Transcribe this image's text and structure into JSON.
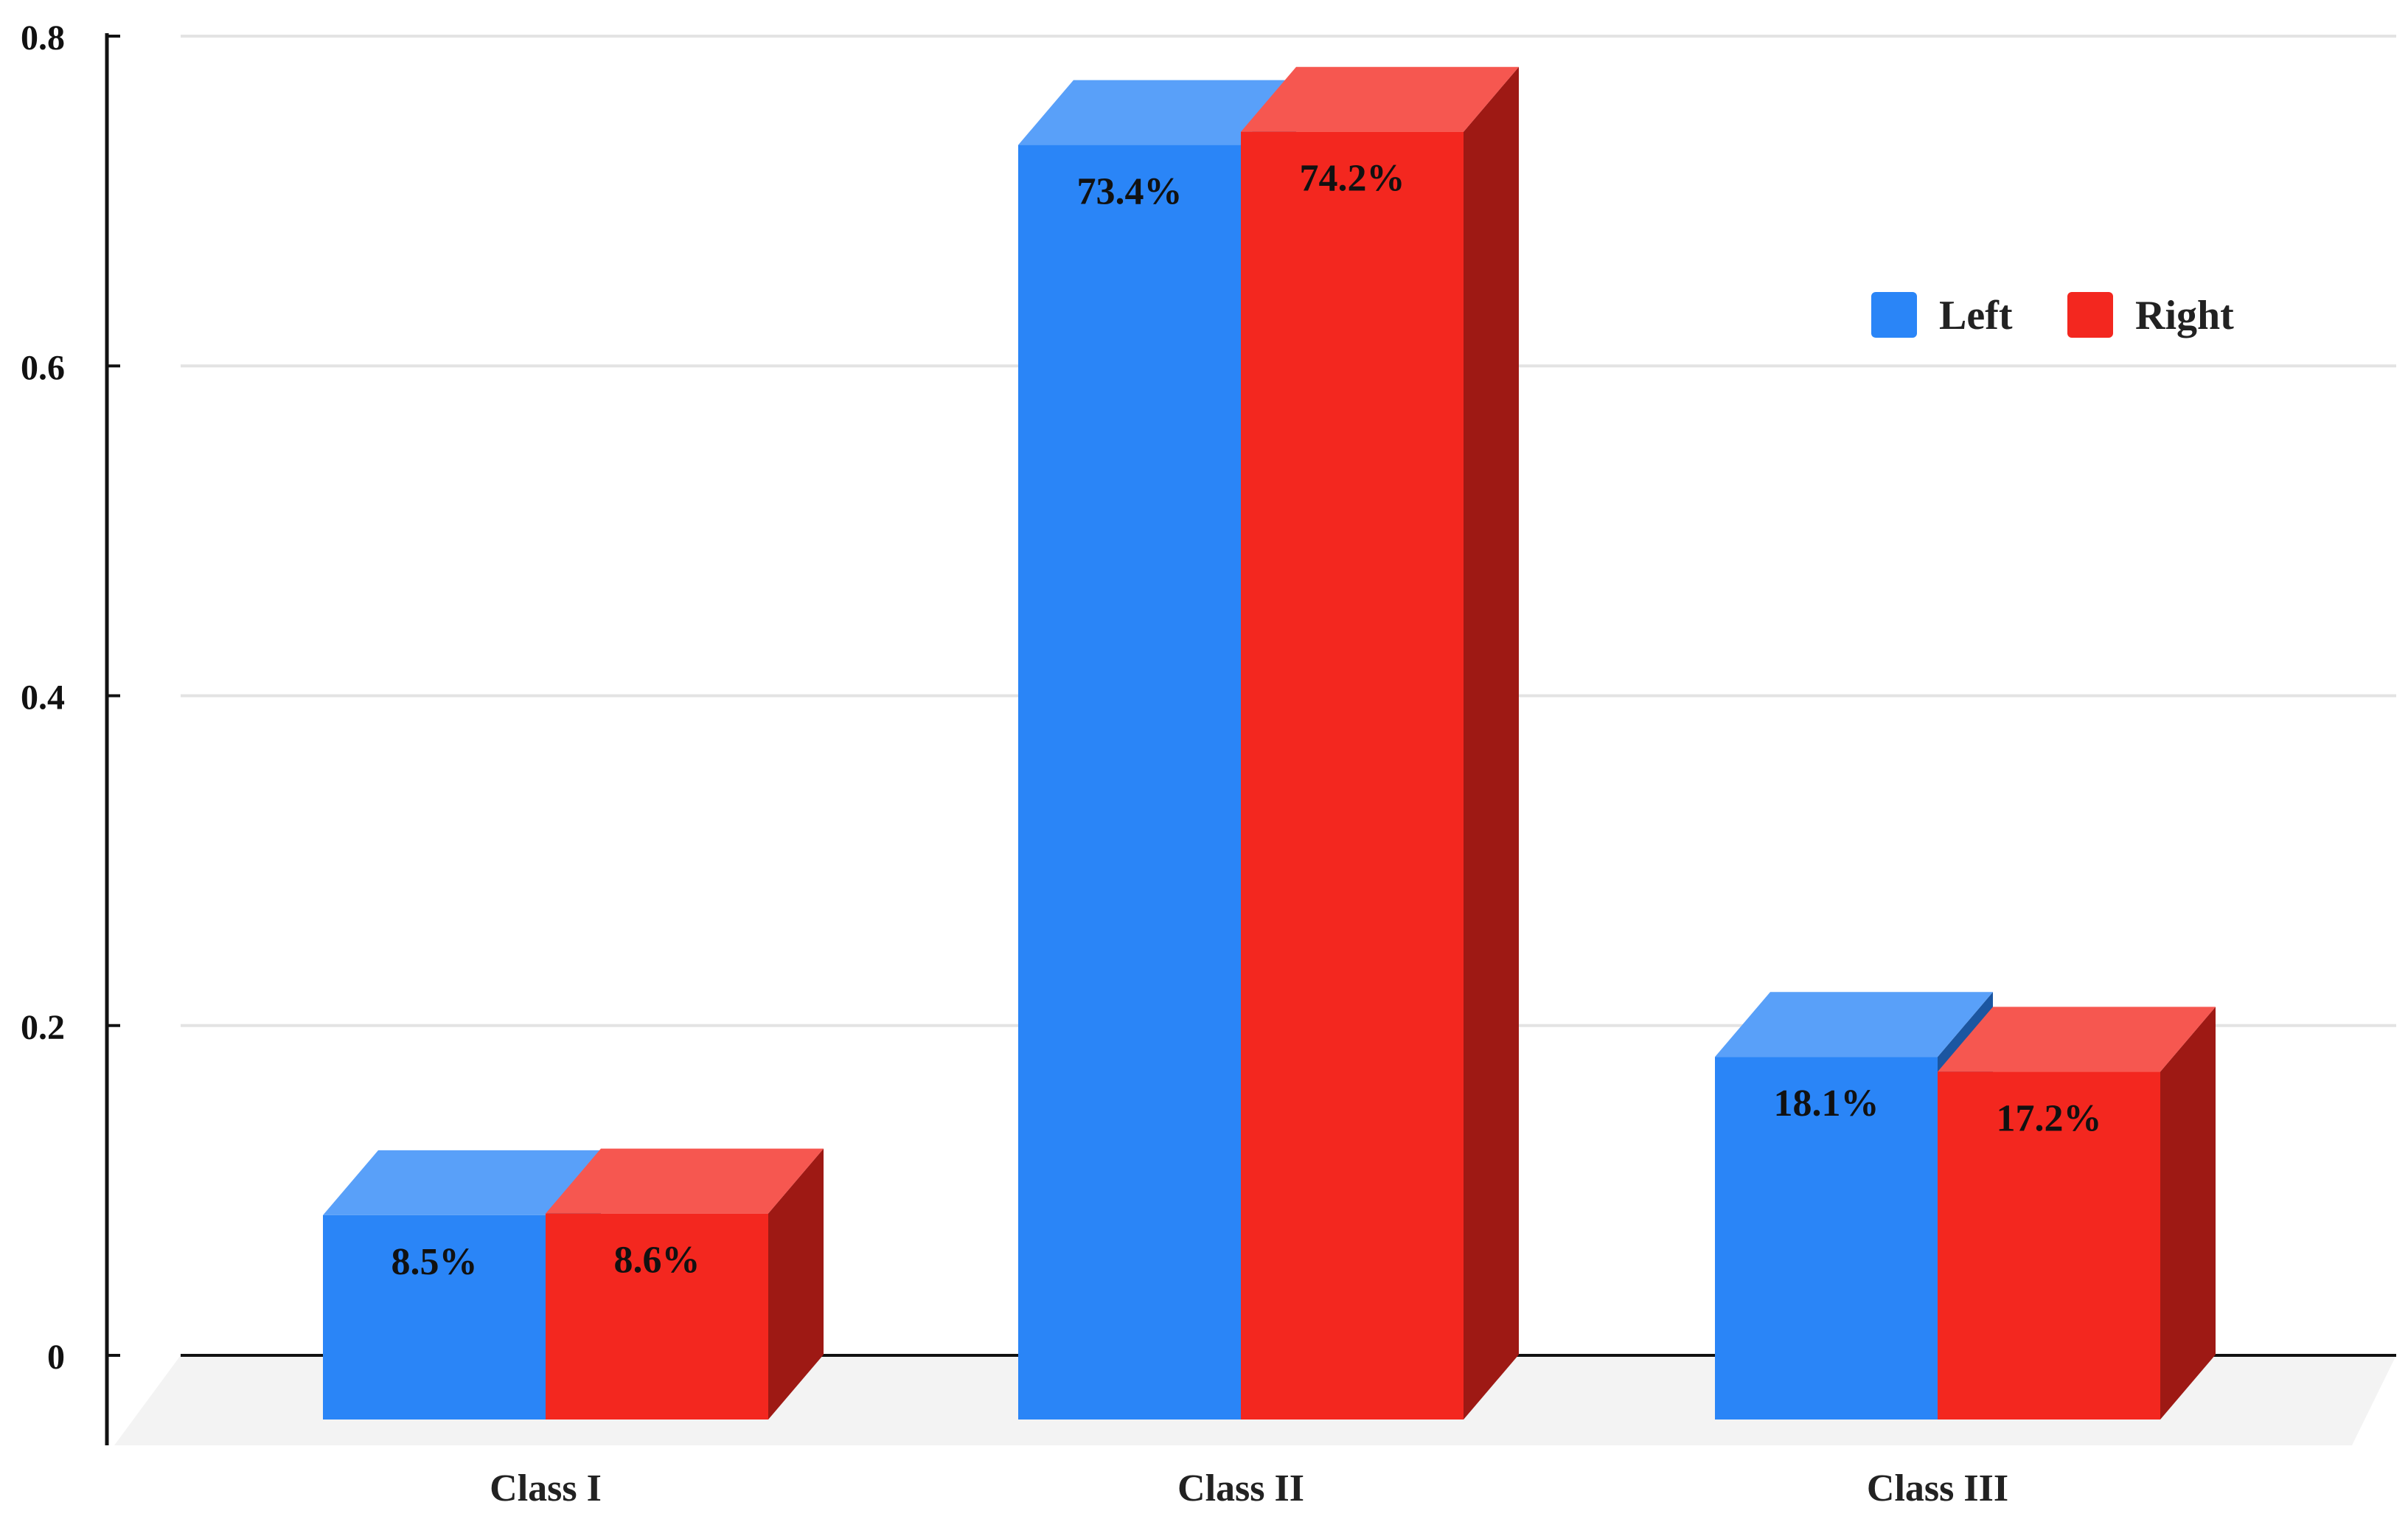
{
  "chart_data": {
    "type": "bar",
    "style": "3d-clustered",
    "categories": [
      "Class I",
      "Class II",
      "Class III"
    ],
    "series": [
      {
        "name": "Left",
        "values": [
          0.085,
          0.734,
          0.181
        ],
        "labels": [
          "8.5%",
          "73.4%",
          "18.1%"
        ],
        "color": "#2a85f7"
      },
      {
        "name": "Right",
        "values": [
          0.086,
          0.742,
          0.172
        ],
        "labels": [
          "8.6%",
          "74.2%",
          "17.2%"
        ],
        "color": "#f3271f"
      }
    ],
    "yticks": [
      {
        "value": 0,
        "label": "0"
      },
      {
        "value": 0.2,
        "label": "0.2"
      },
      {
        "value": 0.4,
        "label": "0.4"
      },
      {
        "value": 0.6,
        "label": "0.6"
      },
      {
        "value": 0.8,
        "label": "0.8"
      }
    ],
    "ylim": [
      0,
      0.8
    ],
    "grid": true,
    "legend_position": "top-right",
    "title": "",
    "xlabel": "",
    "ylabel": ""
  }
}
